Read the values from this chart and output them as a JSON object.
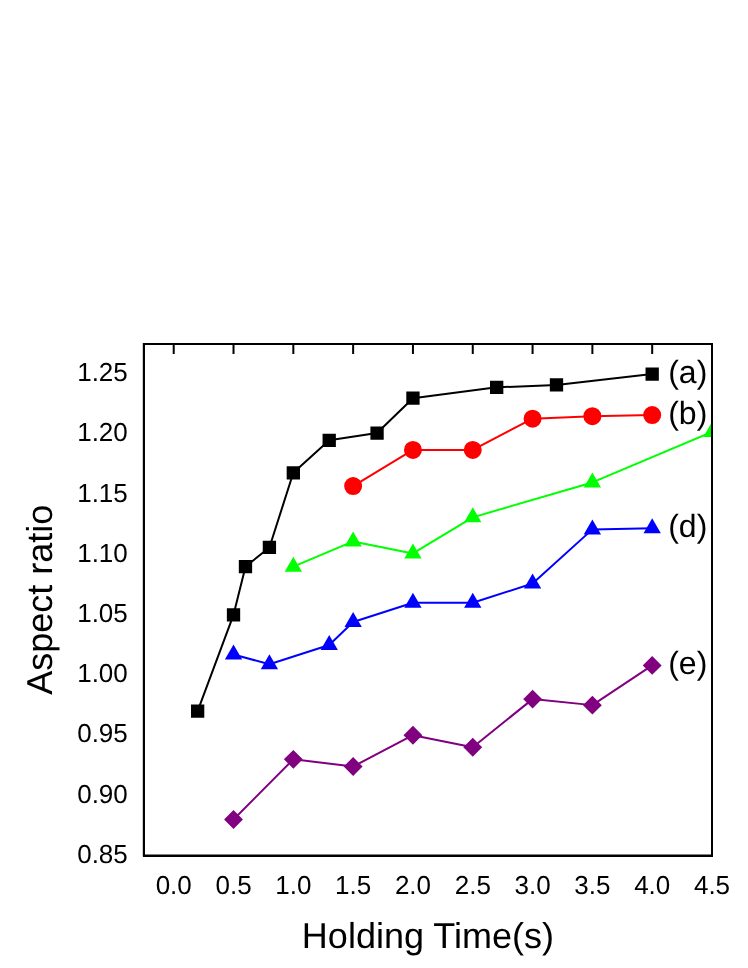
{
  "chart_data": {
    "type": "line",
    "xlabel": "Holding Time(s)",
    "ylabel": "Aspect ratio",
    "xlim": [
      -0.25,
      4.5
    ],
    "xticks": [
      {
        "value": 0,
        "label": "0.0"
      },
      {
        "value": 0.5,
        "label": "0.5"
      },
      {
        "value": 1,
        "label": "1.0"
      },
      {
        "value": 1.5,
        "label": "1.5"
      },
      {
        "value": 2,
        "label": "2.0"
      },
      {
        "value": 2.5,
        "label": "2.5"
      },
      {
        "value": 3,
        "label": "3.0"
      },
      {
        "value": 3.5,
        "label": "3.5"
      },
      {
        "value": 4,
        "label": "4.0"
      },
      {
        "value": 4.5,
        "label": "4.5"
      }
    ],
    "ylim": [
      0.85,
      1.275
    ],
    "yticks": [
      {
        "value": 0.85,
        "label": "0.85"
      },
      {
        "value": 0.9,
        "label": "0.90"
      },
      {
        "value": 0.95,
        "label": "0.95"
      },
      {
        "value": 1,
        "label": "1.00"
      },
      {
        "value": 1.05,
        "label": "1.05"
      },
      {
        "value": 1.1,
        "label": "1.10"
      },
      {
        "value": 1.15,
        "label": "1.15"
      },
      {
        "value": 1.2,
        "label": "1.20"
      },
      {
        "value": 1.25,
        "label": "1.25"
      }
    ],
    "grid": false,
    "legend": "right",
    "series": [
      {
        "name": "(a)",
        "color": "#000000",
        "marker": "square",
        "x": [
          0.2,
          0.5,
          0.6,
          0.8,
          1.0,
          1.3,
          1.7,
          2.0,
          2.7,
          3.2,
          4.0
        ],
        "values": [
          0.97,
          1.05,
          1.09,
          1.106,
          1.168,
          1.195,
          1.201,
          1.23,
          1.239,
          1.241,
          1.25
        ]
      },
      {
        "name": "(b)",
        "color": "#ff0000",
        "marker": "circle",
        "x": [
          1.5,
          2.0,
          2.5,
          3.0,
          3.5,
          4.0
        ],
        "values": [
          1.157,
          1.187,
          1.187,
          1.213,
          1.215,
          1.216
        ]
      },
      {
        "color": "#00ff00",
        "marker": "triangle",
        "x": [
          1.0,
          1.5,
          2.0,
          2.5,
          3.5,
          4.5
        ],
        "values": [
          1.09,
          1.111,
          1.101,
          1.131,
          1.16,
          1.202
        ]
      },
      {
        "name": "(d)",
        "color": "#0000ff",
        "marker": "triangle",
        "x": [
          0.5,
          0.8,
          1.3,
          1.5,
          2.0,
          2.5,
          3.0,
          3.5,
          4.0
        ],
        "values": [
          1.017,
          1.009,
          1.025,
          1.044,
          1.06,
          1.06,
          1.076,
          1.121,
          1.122
        ]
      },
      {
        "name": "(e)",
        "color": "#800080",
        "marker": "diamond",
        "x": [
          0.5,
          1.0,
          1.5,
          2.0,
          2.5,
          3.0,
          3.5,
          4.0
        ],
        "values": [
          0.88,
          0.93,
          0.924,
          0.95,
          0.94,
          0.98,
          0.975,
          1.008
        ]
      }
    ]
  }
}
